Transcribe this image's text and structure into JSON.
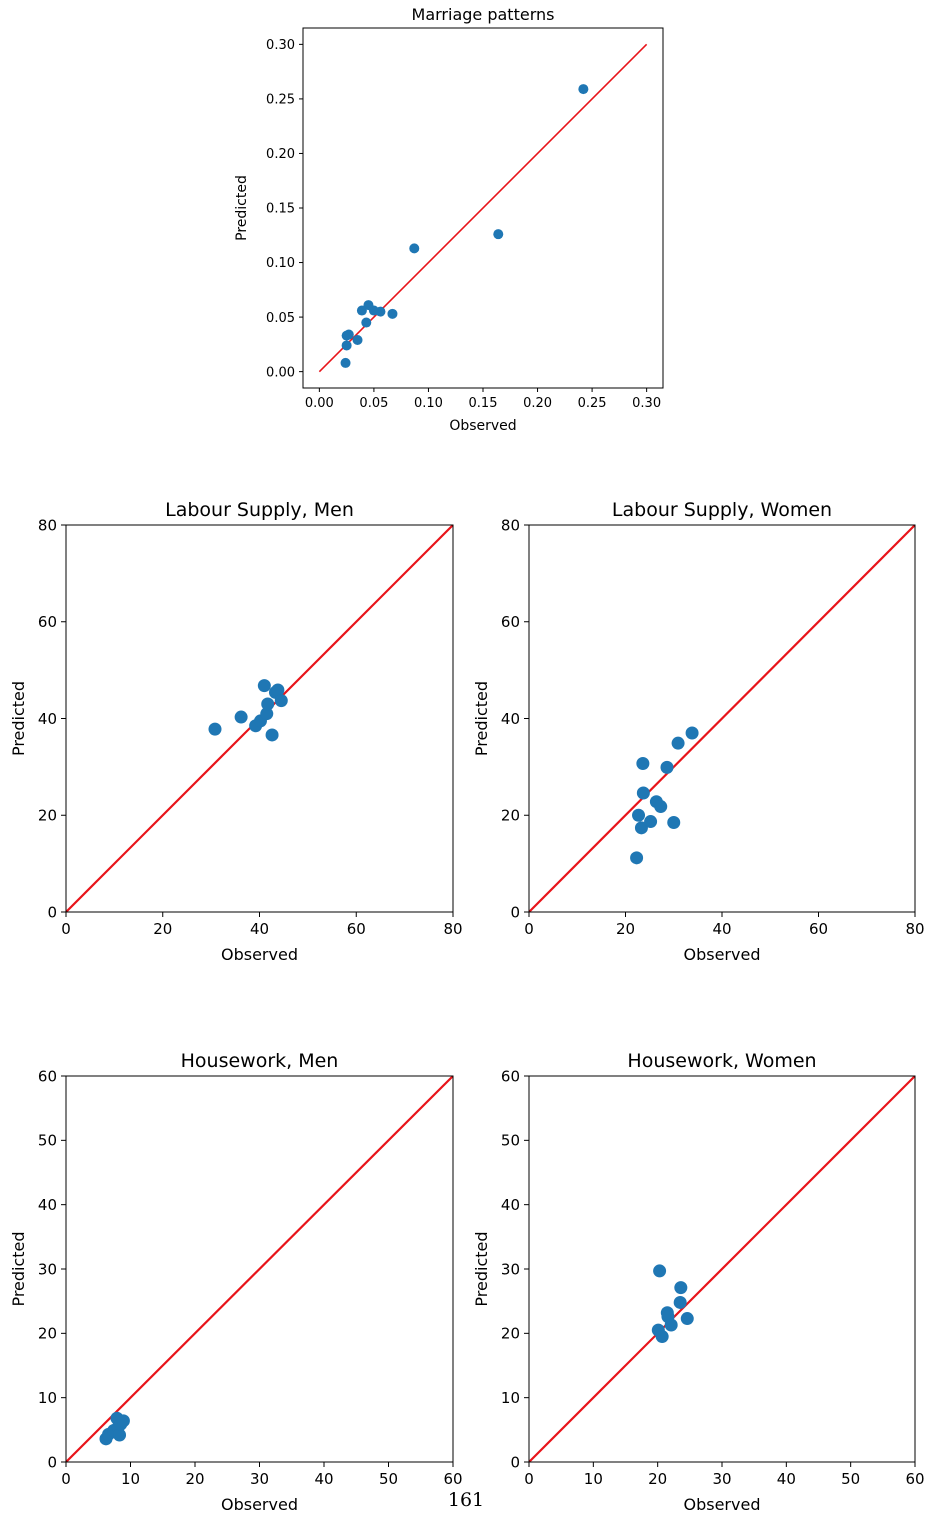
{
  "page_number": "161",
  "colors": {
    "points": "#1f77b4",
    "reference_line": "#e8141a",
    "axes": "#000000"
  },
  "chart_data": [
    {
      "type": "scatter",
      "title": "Marriage patterns",
      "xlabel": "Observed",
      "ylabel": "Predicted",
      "xlim": [
        -0.015,
        0.315
      ],
      "ylim": [
        -0.015,
        0.315
      ],
      "xticks": [
        0.0,
        0.05,
        0.1,
        0.15,
        0.2,
        0.25,
        0.3
      ],
      "yticks": [
        0.0,
        0.05,
        0.1,
        0.15,
        0.2,
        0.25,
        0.3
      ],
      "tick_labels": [
        "0.00",
        "0.05",
        "0.10",
        "0.15",
        "0.20",
        "0.25",
        "0.30"
      ],
      "reference_line": [
        [
          0,
          0
        ],
        [
          0.3,
          0.3
        ]
      ],
      "points": [
        [
          0.242,
          0.259
        ],
        [
          0.164,
          0.126
        ],
        [
          0.087,
          0.113
        ],
        [
          0.067,
          0.053
        ],
        [
          0.056,
          0.055
        ],
        [
          0.05,
          0.056
        ],
        [
          0.045,
          0.061
        ],
        [
          0.039,
          0.056
        ],
        [
          0.043,
          0.045
        ],
        [
          0.035,
          0.029
        ],
        [
          0.027,
          0.034
        ],
        [
          0.025,
          0.033
        ],
        [
          0.025,
          0.024
        ],
        [
          0.024,
          0.008
        ]
      ]
    },
    {
      "type": "scatter",
      "title": "Labour Supply, Men",
      "xlabel": "Observed",
      "ylabel": "Predicted",
      "xlim": [
        0,
        80
      ],
      "ylim": [
        0,
        80
      ],
      "xticks": [
        0,
        20,
        40,
        60,
        80
      ],
      "yticks": [
        0,
        20,
        40,
        60,
        80
      ],
      "tick_labels": [
        "0",
        "20",
        "40",
        "60",
        "80"
      ],
      "reference_line": [
        [
          0,
          0
        ],
        [
          80,
          80
        ]
      ],
      "points": [
        [
          30.8,
          37.8
        ],
        [
          36.2,
          40.3
        ],
        [
          39.2,
          38.5
        ],
        [
          40.2,
          39.5
        ],
        [
          41.0,
          46.8
        ],
        [
          41.5,
          41.0
        ],
        [
          41.7,
          43.0
        ],
        [
          42.6,
          36.6
        ],
        [
          43.3,
          45.4
        ],
        [
          43.8,
          45.9
        ],
        [
          44.5,
          43.7
        ]
      ]
    },
    {
      "type": "scatter",
      "title": "Labour Supply, Women",
      "xlabel": "Observed",
      "ylabel": "Predicted",
      "xlim": [
        0,
        80
      ],
      "ylim": [
        0,
        80
      ],
      "xticks": [
        0,
        20,
        40,
        60,
        80
      ],
      "yticks": [
        0,
        20,
        40,
        60,
        80
      ],
      "tick_labels": [
        "0",
        "20",
        "40",
        "60",
        "80"
      ],
      "reference_line": [
        [
          0,
          0
        ],
        [
          80,
          80
        ]
      ],
      "points": [
        [
          22.3,
          11.2
        ],
        [
          22.7,
          20.0
        ],
        [
          23.3,
          17.4
        ],
        [
          23.6,
          30.7
        ],
        [
          23.7,
          24.6
        ],
        [
          25.2,
          18.7
        ],
        [
          26.4,
          22.8
        ],
        [
          27.3,
          21.8
        ],
        [
          28.6,
          29.9
        ],
        [
          30.0,
          18.5
        ],
        [
          30.9,
          34.9
        ],
        [
          33.8,
          37.0
        ]
      ]
    },
    {
      "type": "scatter",
      "title": "Housework, Men",
      "xlabel": "Observed",
      "ylabel": "Predicted",
      "xlim": [
        0,
        60
      ],
      "ylim": [
        0,
        60
      ],
      "xticks": [
        0,
        10,
        20,
        30,
        40,
        50,
        60
      ],
      "yticks": [
        0,
        10,
        20,
        30,
        40,
        50,
        60
      ],
      "tick_labels": [
        "0",
        "10",
        "20",
        "30",
        "40",
        "50",
        "60"
      ],
      "reference_line": [
        [
          0,
          0
        ],
        [
          60,
          60
        ]
      ],
      "points": [
        [
          6.2,
          3.6
        ],
        [
          6.6,
          4.3
        ],
        [
          7.4,
          4.9
        ],
        [
          7.9,
          6.8
        ],
        [
          8.1,
          5.4
        ],
        [
          8.3,
          4.2
        ],
        [
          8.5,
          5.9
        ],
        [
          8.9,
          6.4
        ]
      ]
    },
    {
      "type": "scatter",
      "title": "Housework, Women",
      "xlabel": "Observed",
      "ylabel": "Predicted",
      "xlim": [
        0,
        60
      ],
      "ylim": [
        0,
        60
      ],
      "xticks": [
        0,
        10,
        20,
        30,
        40,
        50,
        60
      ],
      "yticks": [
        0,
        10,
        20,
        30,
        40,
        50,
        60
      ],
      "tick_labels": [
        "0",
        "10",
        "20",
        "30",
        "40",
        "50",
        "60"
      ],
      "reference_line": [
        [
          0,
          0
        ],
        [
          60,
          60
        ]
      ],
      "points": [
        [
          20.1,
          20.5
        ],
        [
          20.3,
          29.7
        ],
        [
          20.7,
          19.5
        ],
        [
          21.5,
          23.2
        ],
        [
          21.6,
          22.6
        ],
        [
          22.1,
          21.3
        ],
        [
          23.5,
          24.8
        ],
        [
          23.6,
          27.1
        ],
        [
          24.6,
          22.3
        ]
      ]
    }
  ]
}
